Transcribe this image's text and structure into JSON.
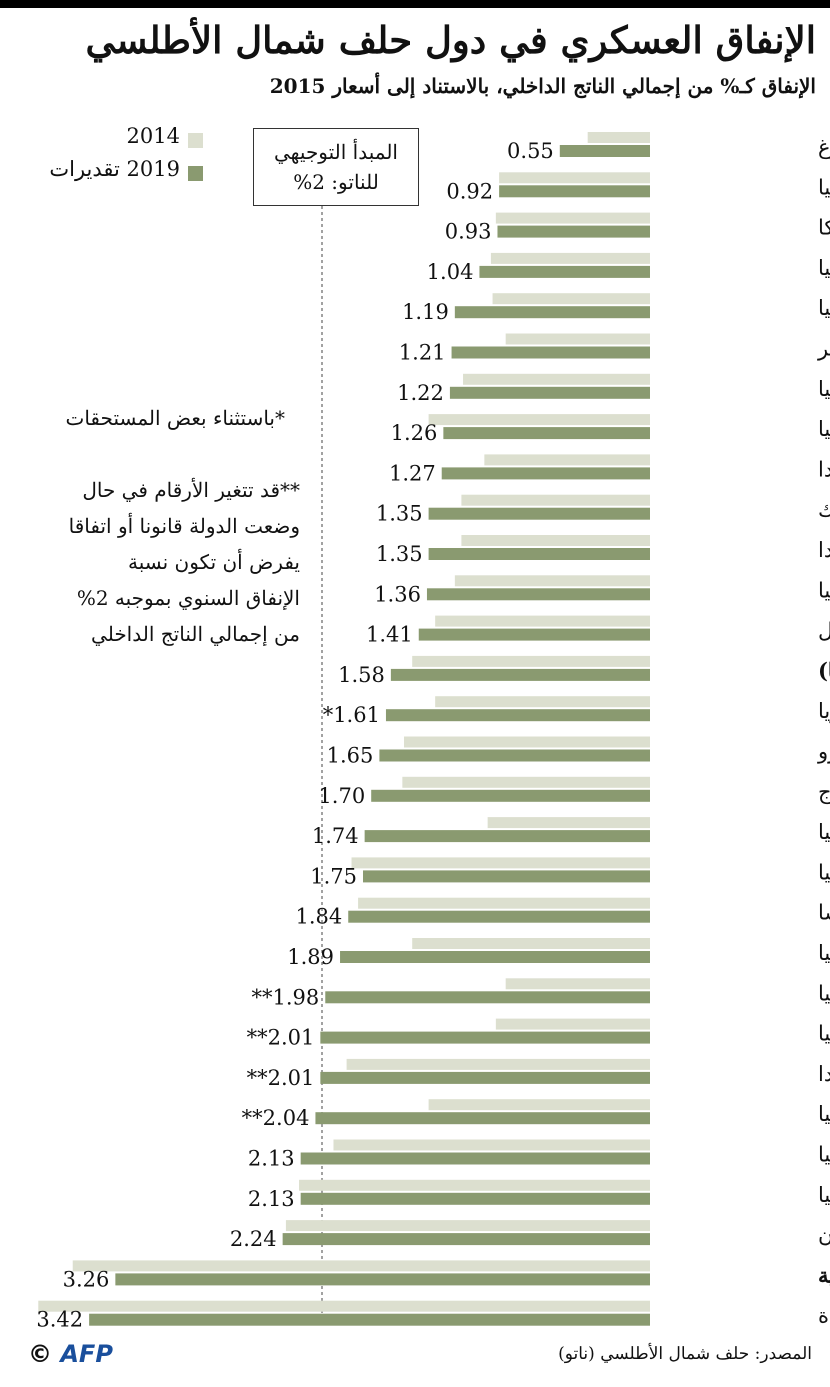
{
  "header": {
    "title": "الإنفاق العسكري في دول حلف شمال الأطلسي",
    "subtitle": "الإنفاق كـ% من إجمالي الناتج الداخلي، بالاستناد إلى أسعار 2015"
  },
  "legend": {
    "items": [
      "2014",
      "2019 تقديرات"
    ],
    "colors": [
      "#dcdfcf",
      "#8a9a70"
    ]
  },
  "guideline_box": {
    "line1": "المبدأ التوجيهي",
    "line2": "للناتو: 2%"
  },
  "notes": {
    "note1": "*باستثناء بعض المستحقات",
    "note2_lines": [
      "**قد تتغير الأرقام في حال",
      "وضعت الدولة قانونا أو اتفاقا",
      "يفرض أن تكون نسبة",
      "الإنفاق السنوي بموجبه 2%",
      "من إجمالي الناتج الداخلي"
    ]
  },
  "chart_data": {
    "type": "bar",
    "orientation": "horizontal",
    "xlim": [
      0,
      3.6
    ],
    "reference_line": 2,
    "categories": [
      "لوكسمبورغ",
      "إسبانيا",
      "بلجيكا",
      "سلوفينيا",
      "تشيكيا",
      "المجر",
      "إيطاليا",
      "ألبانيا",
      "كندا",
      "الدنمارك",
      "هولندا",
      "ألمانيا",
      "البرتغال",
      "الناتو (أوروبا)",
      "بلغاريا",
      "مونتينيغرو",
      "النروج",
      "سلوفاكيا",
      "كرواتيا",
      "فرنسا",
      "تركيا",
      "ليتوانيا",
      "لاتفيا",
      "بولندا",
      "رومانيا",
      "إستونيا",
      "بريطانيا",
      "اليونان",
      "أميركا الشمالية",
      "الولايات المتحدة"
    ],
    "bold_categories": [
      "الناتو (أوروبا)",
      "أميركا الشمالية"
    ],
    "series": [
      {
        "name": "2014",
        "values": [
          0.38,
          0.92,
          0.94,
          0.97,
          0.96,
          0.88,
          1.14,
          1.35,
          1.01,
          1.15,
          1.15,
          1.19,
          1.31,
          1.45,
          1.31,
          1.5,
          1.51,
          0.99,
          1.82,
          1.78,
          1.45,
          0.88,
          0.94,
          1.85,
          1.35,
          1.93,
          2.14,
          2.22,
          3.52,
          3.73
        ]
      },
      {
        "name": "2019 تقديرات",
        "values": [
          0.55,
          0.92,
          0.93,
          1.04,
          1.19,
          1.21,
          1.22,
          1.26,
          1.27,
          1.35,
          1.35,
          1.36,
          1.41,
          1.58,
          1.61,
          1.65,
          1.7,
          1.74,
          1.75,
          1.84,
          1.89,
          1.98,
          2.01,
          2.01,
          2.04,
          2.13,
          2.13,
          2.24,
          3.26,
          3.42
        ]
      }
    ],
    "labels": [
      "0.55",
      "0.92",
      "0.93",
      "1.04",
      "1.19",
      "1.21",
      "1.22",
      "1.26",
      "1.27",
      "1.35",
      "1.35",
      "1.36",
      "1.41",
      "1.58",
      "*1.61",
      "1.65",
      "1.70",
      "1.74",
      "1.75",
      "1.84",
      "1.89",
      "**1.98",
      "**2.01",
      "**2.01",
      "**2.04",
      "2.13",
      "2.13",
      "2.24",
      "3.26",
      "3.42"
    ]
  },
  "footer": {
    "source": "المصدر: حلف شمال الأطلسي (ناتو)",
    "logo_text": "AFP",
    "copyright": "©"
  }
}
